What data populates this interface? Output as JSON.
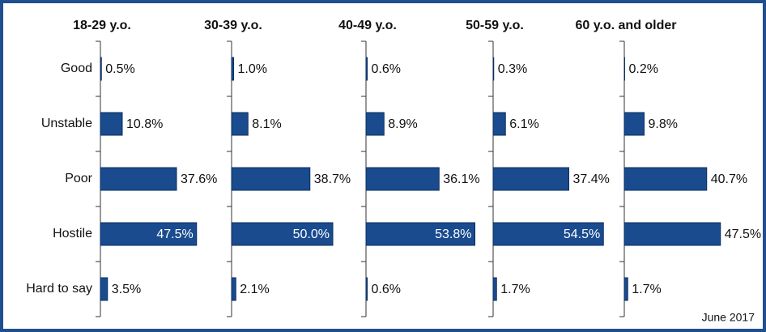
{
  "chart_data": {
    "type": "bar",
    "orientation": "horizontal",
    "categories": [
      "Good",
      "Unstable",
      "Poor",
      "Hostile",
      "Hard to say"
    ],
    "note": "June 2017",
    "xlim": [
      0,
      60
    ],
    "color": "#1a4b8f",
    "series": [
      {
        "name": "18-29 y.o.",
        "values": [
          0.5,
          10.8,
          37.6,
          47.5,
          3.5
        ],
        "value_labels": [
          "0.5%",
          "10.8%",
          "37.6%",
          "47.5%",
          "3.5%"
        ]
      },
      {
        "name": "30-39 y.o.",
        "values": [
          1.0,
          8.1,
          38.7,
          50.0,
          2.1
        ],
        "value_labels": [
          "1.0%",
          "8.1%",
          "38.7%",
          "50.0%",
          "2.1%"
        ]
      },
      {
        "name": "40-49 y.o.",
        "values": [
          0.6,
          8.9,
          36.1,
          53.8,
          0.6
        ],
        "value_labels": [
          "0.6%",
          "8.9%",
          "36.1%",
          "53.8%",
          "0.6%"
        ]
      },
      {
        "name": "50-59 y.o.",
        "values": [
          0.3,
          6.1,
          37.4,
          54.5,
          1.7
        ],
        "value_labels": [
          "0.3%",
          "6.1%",
          "37.4%",
          "54.5%",
          "1.7%"
        ]
      },
      {
        "name": "60 y.o. and older",
        "values": [
          0.2,
          9.8,
          40.7,
          47.5,
          1.7
        ],
        "value_labels": [
          "0.2%",
          "9.8%",
          "40.7%",
          "47.5%",
          "1.7%"
        ]
      }
    ]
  }
}
